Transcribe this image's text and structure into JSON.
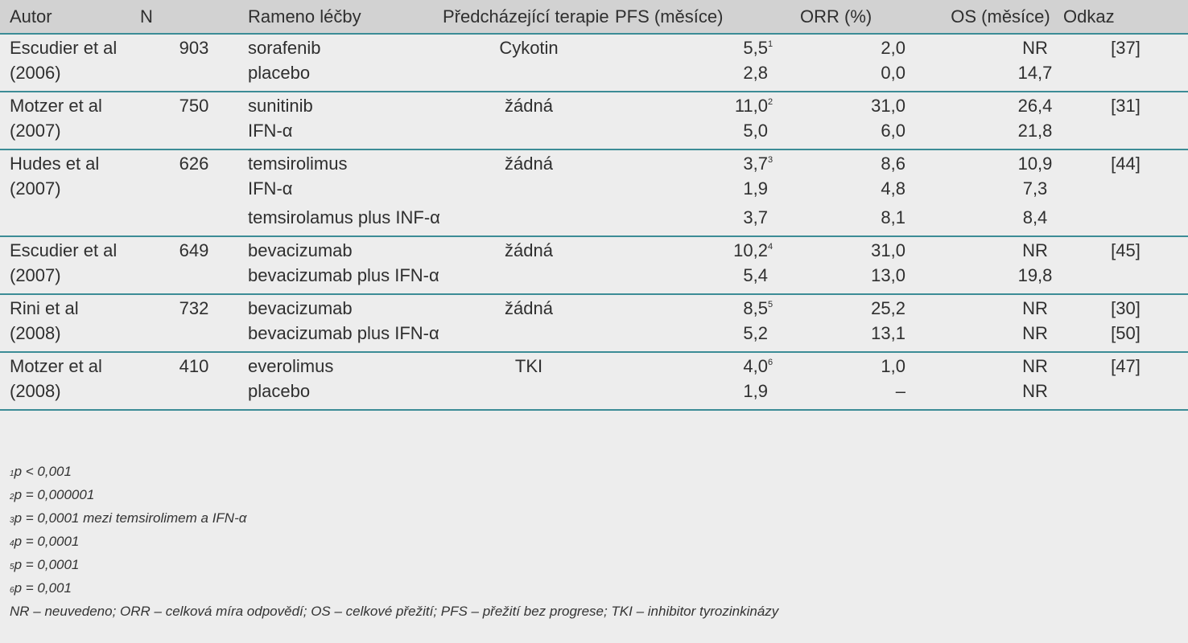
{
  "headers": {
    "autor": "Autor",
    "n": "N",
    "arm": "Rameno léčby",
    "prior": "Předcházející terapie",
    "pfs": "PFS (měsíce)",
    "orr": "ORR (%)",
    "os": "OS (měsíce)",
    "ref": "Odkaz"
  },
  "groups": [
    {
      "author": "Escudier et al",
      "year": "(2006)",
      "n": "903",
      "prior": "Cykotin",
      "arms": [
        {
          "arm": "sorafenib",
          "pfs": "5,5",
          "sup": "1",
          "orr": "2,0",
          "os": "NR",
          "ref": "[37]"
        },
        {
          "arm": "placebo",
          "pfs": "2,8",
          "sup": "",
          "orr": "0,0",
          "os": "14,7",
          "ref": ""
        }
      ]
    },
    {
      "author": "Motzer et al",
      "year": "(2007)",
      "n": "750",
      "prior": "žádná",
      "arms": [
        {
          "arm": "sunitinib",
          "pfs": "11,0",
          "sup": "2",
          "orr": "31,0",
          "os": "26,4",
          "ref": "[31]"
        },
        {
          "arm": "IFN-α",
          "pfs": "5,0",
          "sup": "",
          "orr": "6,0",
          "os": "21,8",
          "ref": ""
        }
      ]
    },
    {
      "author": "Hudes et al",
      "year": "(2007)",
      "n": "626",
      "prior": "žádná",
      "arms": [
        {
          "arm": "temsirolimus",
          "pfs": "3,7",
          "sup": "3",
          "orr": "8,6",
          "os": "10,9",
          "ref": "[44]"
        },
        {
          "arm": "IFN-α",
          "pfs": "1,9",
          "sup": "",
          "orr": "4,8",
          "os": "7,3",
          "ref": ""
        },
        {
          "arm": "temsirolamus plus INF-α",
          "pfs": "3,7",
          "sup": "",
          "orr": "8,1",
          "os": "8,4",
          "ref": ""
        }
      ]
    },
    {
      "author": "Escudier et al",
      "year": "(2007)",
      "n": "649",
      "prior": "žádná",
      "arms": [
        {
          "arm": "bevacizumab",
          "pfs": "10,2",
          "sup": "4",
          "orr": "31,0",
          "os": "NR",
          "ref": "[45]"
        },
        {
          "arm": "bevacizumab plus  IFN-α",
          "pfs": "5,4",
          "sup": "",
          "orr": "13,0",
          "os": "19,8",
          "ref": ""
        }
      ]
    },
    {
      "author": "Rini et al",
      "year": "(2008)",
      "n": "732",
      "prior": "žádná",
      "arms": [
        {
          "arm": "bevacizumab",
          "pfs": "8,5",
          "sup": "5",
          "orr": "25,2",
          "os": "NR",
          "ref": "[30]"
        },
        {
          "arm": "bevacizumab plus   IFN-α",
          "pfs": "5,2",
          "sup": "",
          "orr": "13,1",
          "os": "NR",
          "ref": "[50]"
        }
      ]
    },
    {
      "author": "Motzer et al",
      "year": "(2008)",
      "n": "410",
      "prior": "TKI",
      "arms": [
        {
          "arm": "everolimus",
          "pfs": "4,0",
          "sup": "6",
          "orr": "1,0",
          "os": "NR",
          "ref": "[47]"
        },
        {
          "arm": "placebo",
          "pfs": "1,9",
          "sup": "",
          "orr": "–",
          "os": "NR",
          "ref": ""
        }
      ]
    }
  ],
  "footnotes": [
    {
      "mark": "1",
      "text": "p < 0,001"
    },
    {
      "mark": "2",
      "text": "p = 0,000001"
    },
    {
      "mark": "3",
      "text": "p = 0,0001 mezi temsirolimem a IFN-α"
    },
    {
      "mark": "4",
      "text": "p = 0,0001"
    },
    {
      "mark": "5",
      "text": "p = 0,0001"
    },
    {
      "mark": "6",
      "text": "p = 0,001"
    }
  ],
  "abbreviations": "NR – neuvedeno; ORR – celková míra odpovědí; OS – celkové přežití; PFS – přežití bez progrese; TKI – inhibitor tyrozinkinázy"
}
